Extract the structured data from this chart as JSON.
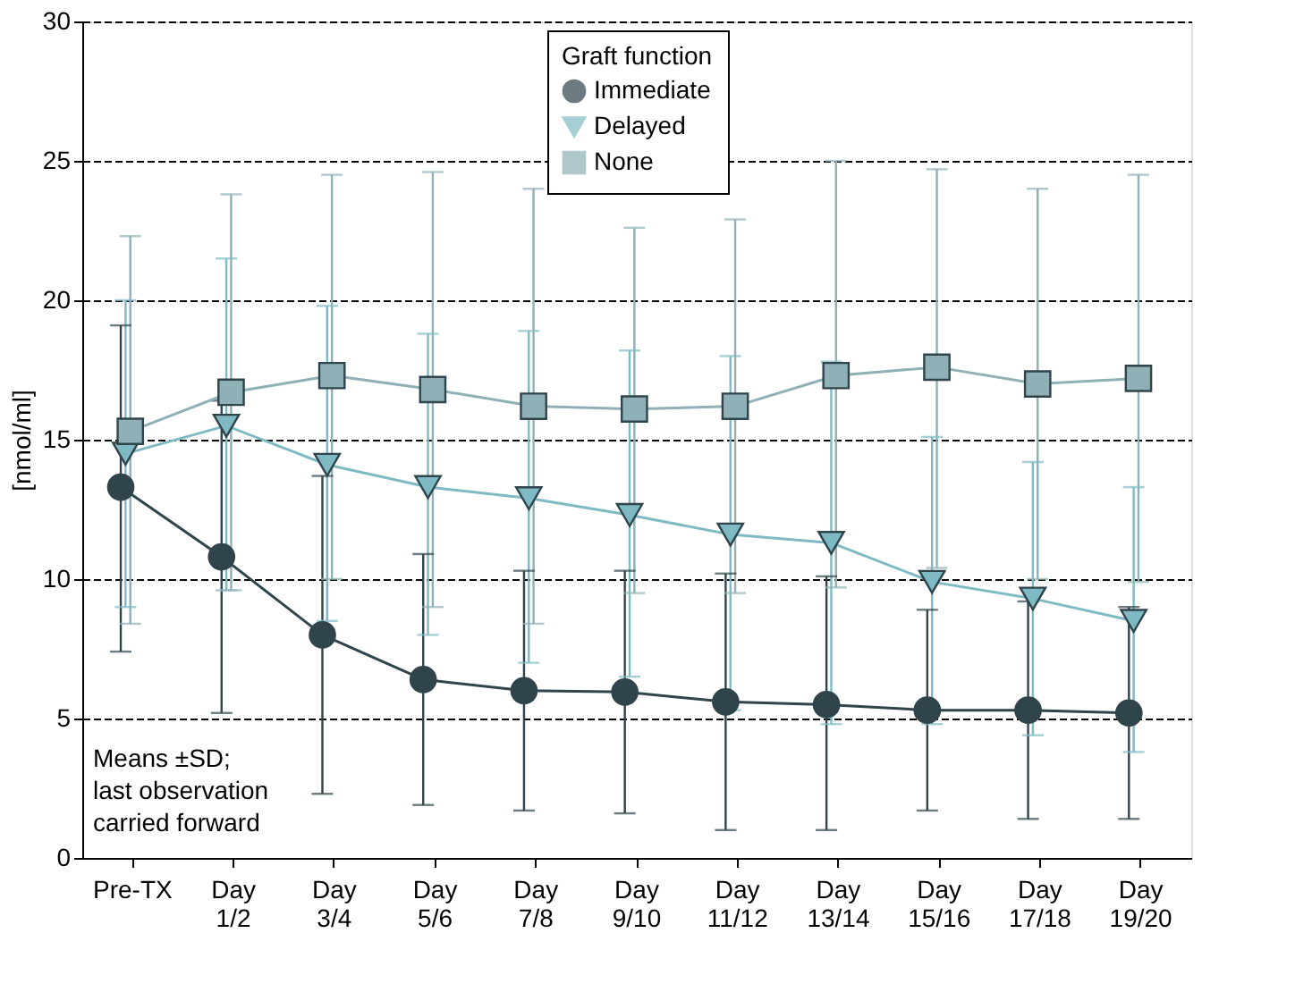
{
  "chart_data": {
    "type": "line",
    "ylabel": "[nmol/ml]",
    "legend_title": "Graft function",
    "legend": "top",
    "categories": [
      "Pre-TX",
      "Day 1/2",
      "Day 3/4",
      "Day 5/6",
      "Day 7/8",
      "Day 9/10",
      "Day 11/12",
      "Day 13/14",
      "Day 15/16",
      "Day 17/18",
      "Day 19/20"
    ],
    "ylim": [
      0,
      30
    ],
    "yticks": [
      0,
      5,
      10,
      15,
      20,
      25,
      30
    ],
    "grid": "y",
    "series": [
      {
        "name": "Immediate",
        "color": "#2f444b",
        "marker": "circle",
        "values": [
          13.3,
          10.8,
          8.0,
          6.4,
          6.0,
          5.95,
          5.6,
          5.5,
          5.3,
          5.3,
          5.2
        ],
        "errors": [
          [
            7.4,
            19.1
          ],
          [
            5.2,
            16.4
          ],
          [
            2.3,
            13.7
          ],
          [
            1.9,
            10.9
          ],
          [
            1.7,
            10.3
          ],
          [
            1.6,
            10.3
          ],
          [
            1.0,
            10.2
          ],
          [
            1.0,
            10.1
          ],
          [
            1.7,
            8.9
          ],
          [
            1.4,
            9.2
          ],
          [
            1.4,
            9.0
          ]
        ]
      },
      {
        "name": "Delayed",
        "color": "#7fbac4",
        "marker": "triangle-down",
        "values": [
          14.5,
          15.5,
          14.1,
          13.3,
          12.9,
          12.3,
          11.6,
          11.3,
          9.9,
          9.3,
          8.5
        ],
        "errors": [
          [
            9.0,
            20.0
          ],
          [
            9.6,
            21.5
          ],
          [
            8.5,
            19.8
          ],
          [
            8.0,
            18.8
          ],
          [
            7.0,
            18.9
          ],
          [
            6.5,
            18.2
          ],
          [
            5.3,
            18.0
          ],
          [
            4.8,
            17.8
          ],
          [
            4.8,
            15.1
          ],
          [
            4.4,
            14.2
          ],
          [
            3.8,
            13.3
          ]
        ]
      },
      {
        "name": "None",
        "color": "#8fb0b6",
        "marker": "square",
        "values": [
          15.3,
          16.7,
          17.3,
          16.8,
          16.2,
          16.1,
          16.2,
          17.3,
          17.6,
          17.0,
          17.2
        ],
        "errors": [
          [
            8.4,
            22.3
          ],
          [
            9.6,
            23.8
          ],
          [
            10.0,
            24.5
          ],
          [
            9.0,
            24.6
          ],
          [
            8.4,
            24.0
          ],
          [
            9.5,
            22.6
          ],
          [
            9.5,
            22.9
          ],
          [
            9.7,
            25.0
          ],
          [
            10.4,
            24.7
          ],
          [
            10.0,
            24.0
          ],
          [
            9.9,
            24.5
          ]
        ]
      }
    ],
    "annotations": [
      "Means ±SD;\nlast observation\ncarried forward"
    ]
  }
}
